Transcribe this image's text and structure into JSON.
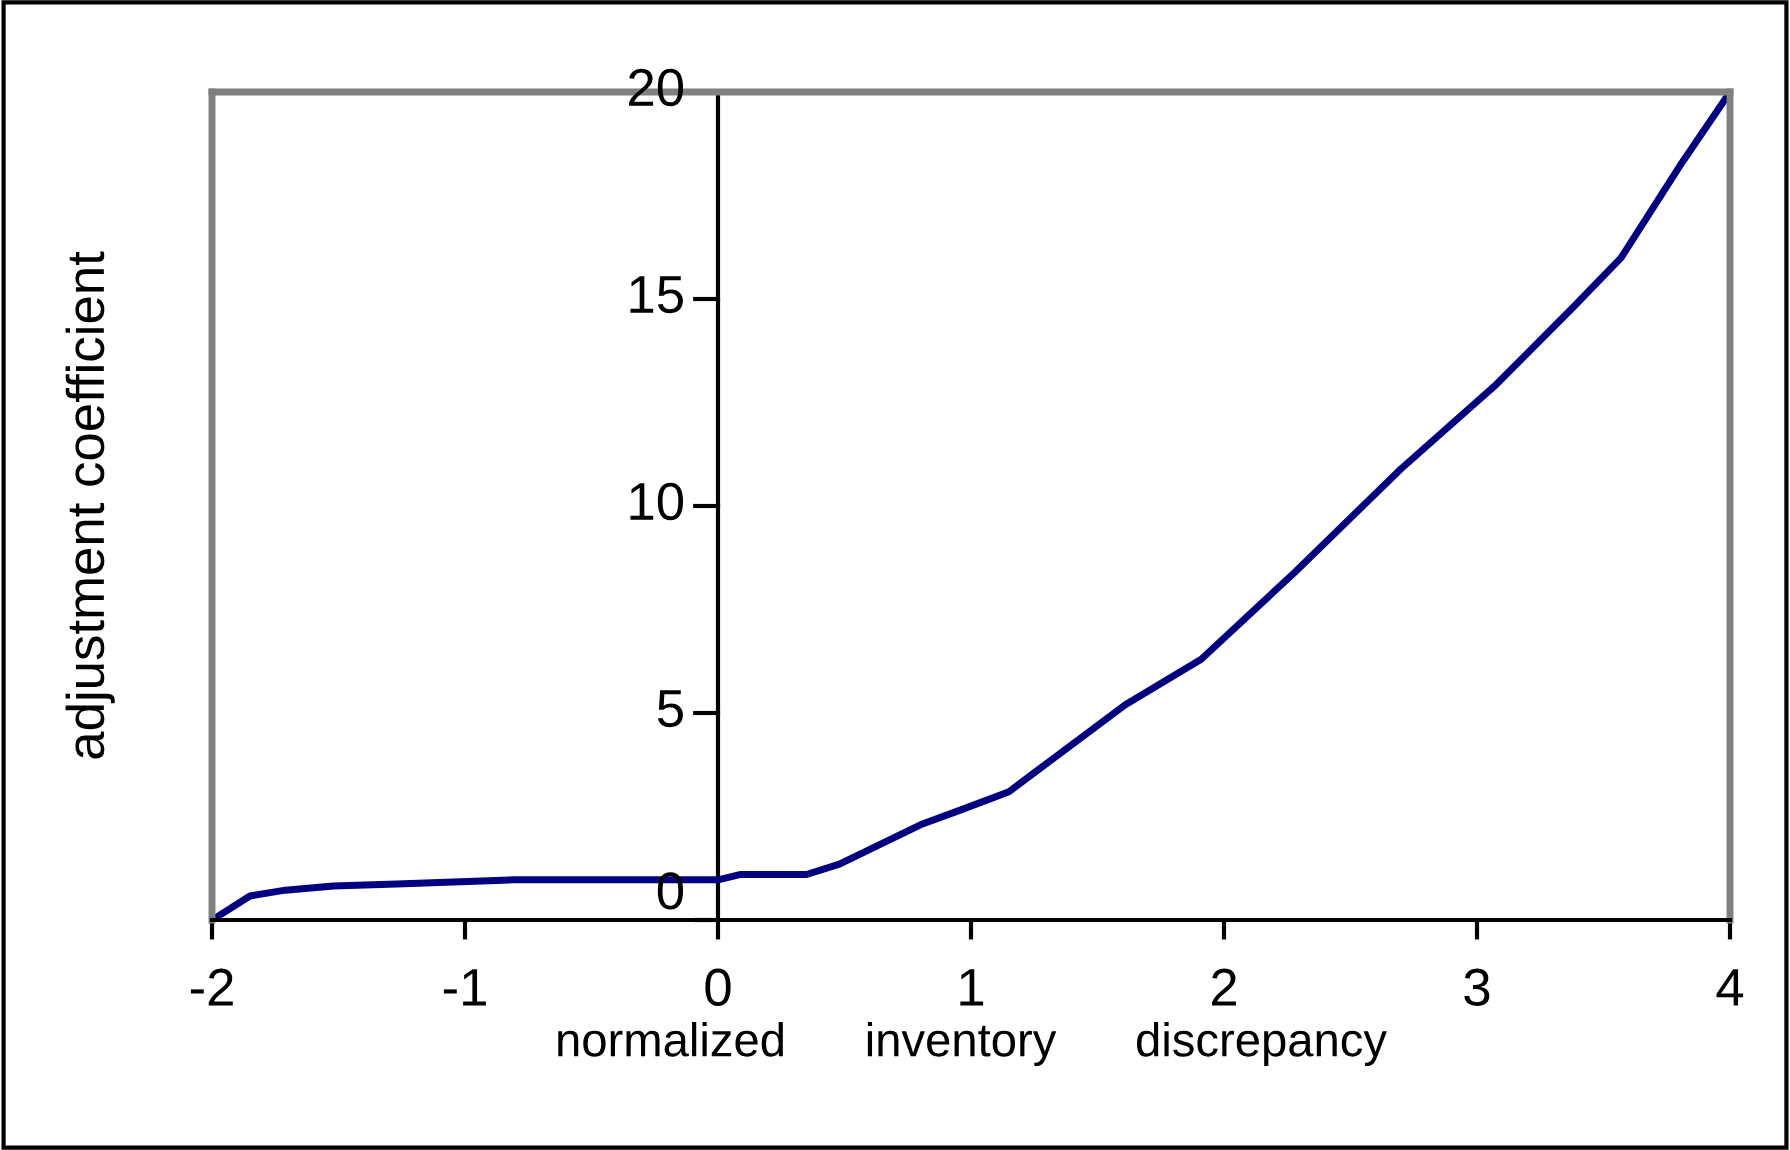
{
  "chart_data": {
    "type": "line",
    "xlabel": "normalized      inventory      discrepancy",
    "ylabel": "adjustment coefficient",
    "x": [
      -2,
      -1.85,
      -1.71,
      -1.52,
      -1.27,
      -0.81,
      0,
      0.09,
      0.35,
      0.48,
      0.8,
      0.96,
      1.15,
      1.61,
      1.91,
      2.28,
      2.7,
      3.07,
      3.38,
      3.57,
      3.8,
      4
    ],
    "series": [
      {
        "color": "#000080",
        "values": [
          0,
          0.58,
          0.72,
          0.82,
          0.87,
          0.97,
          0.97,
          1.1,
          1.1,
          1.35,
          2.3,
          2.66,
          3.1,
          5.2,
          6.3,
          8.4,
          10.9,
          12.9,
          14.8,
          16.0,
          18.2,
          20
        ]
      }
    ],
    "xlim": [
      -2,
      4
    ],
    "ylim": [
      0,
      20
    ],
    "xticks": [
      -2,
      -1,
      0,
      1,
      2,
      3,
      4
    ],
    "yticks": [
      0,
      5,
      10,
      15,
      20
    ],
    "grid": false,
    "legend": false,
    "marker": "none",
    "line_style": "solid"
  }
}
